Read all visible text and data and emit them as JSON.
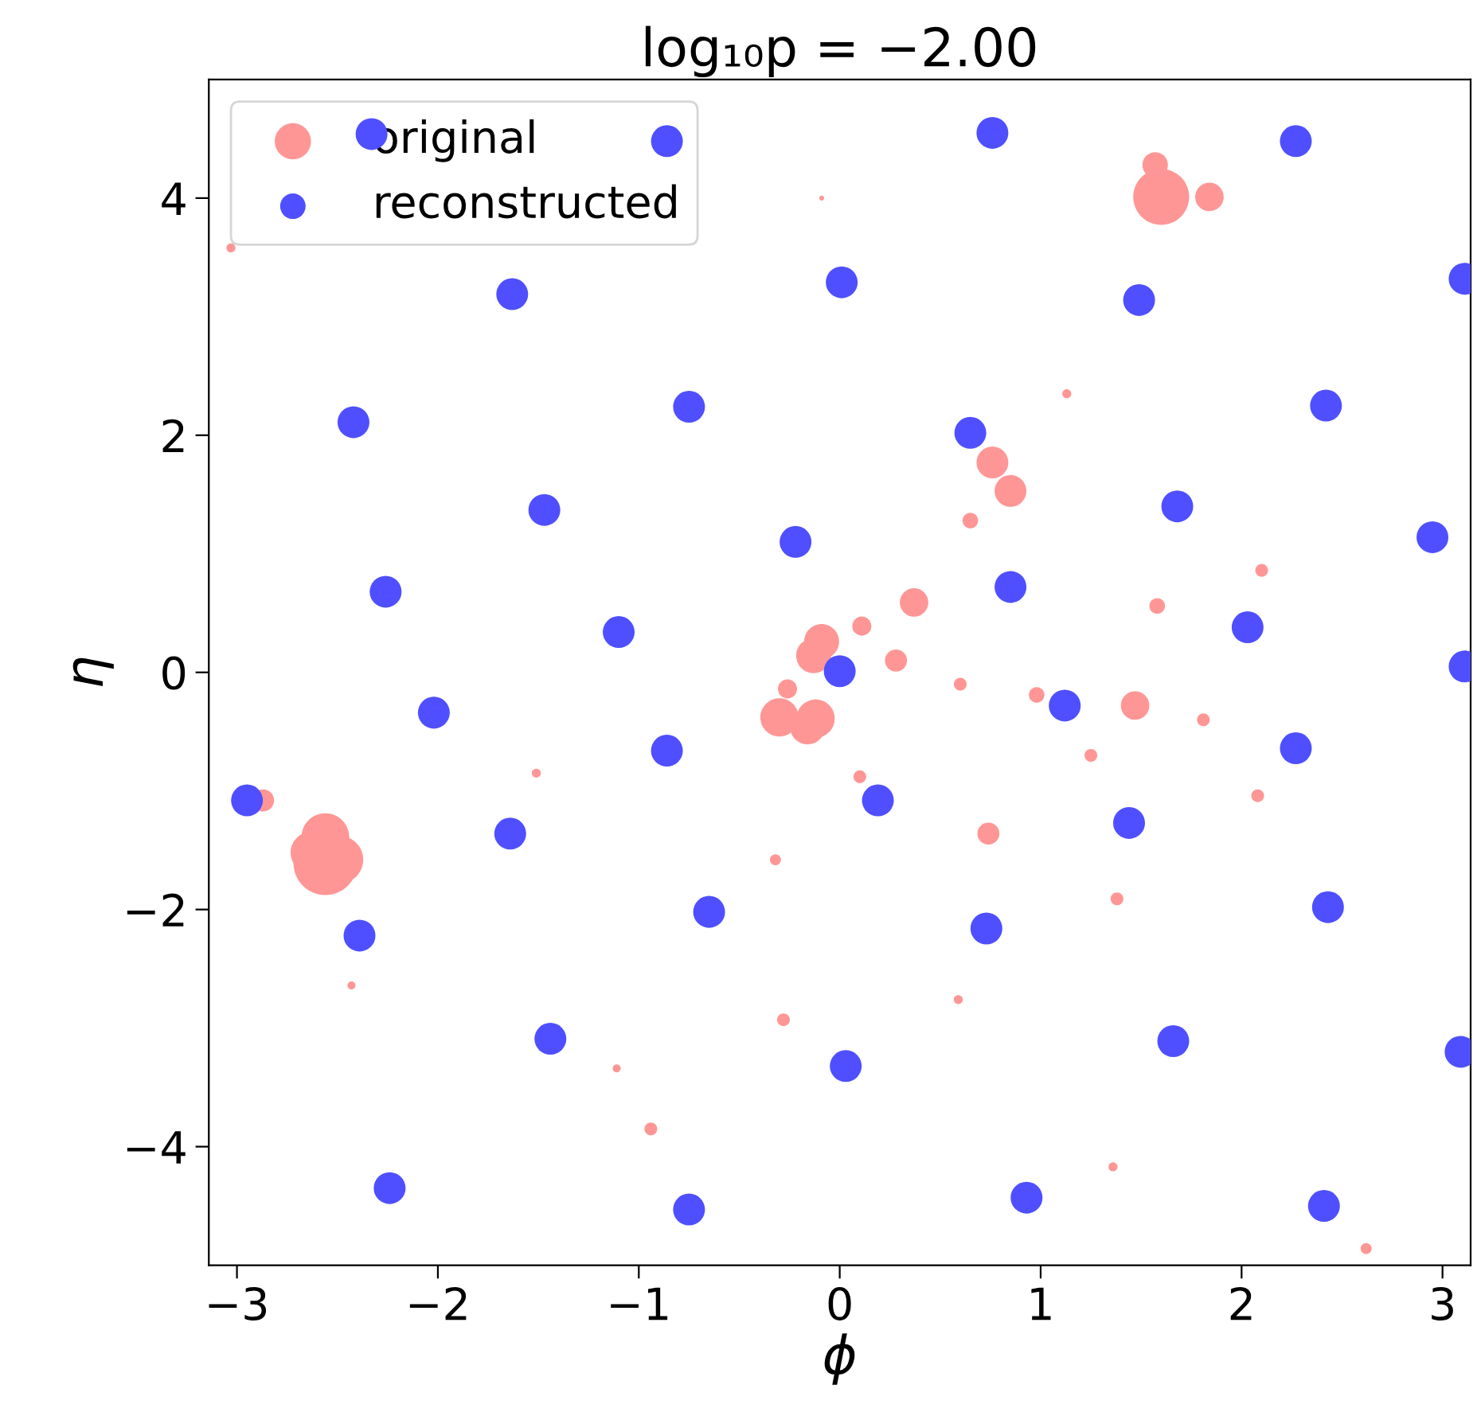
{
  "chart_data": {
    "type": "bubble",
    "title": "log₁₀p = −2.00",
    "xlabel": "ϕ",
    "ylabel": "η",
    "xlim": [
      -3.14,
      3.14
    ],
    "ylim": [
      -5,
      5
    ],
    "xticks": [
      {
        "value": -3,
        "label": "−3"
      },
      {
        "value": -2,
        "label": "−2"
      },
      {
        "value": -1,
        "label": "−1"
      },
      0,
      1,
      2,
      3
    ],
    "yticks": [
      {
        "value": -4,
        "label": "−4"
      },
      {
        "value": -2,
        "label": "−2"
      },
      0,
      2,
      4
    ],
    "grid": false,
    "legend": "top left",
    "marker": "circle",
    "series": [
      {
        "name": "original",
        "color": "#ff9696",
        "x": [
          -3.03,
          -0.09,
          1.57,
          1.6,
          1.84,
          1.13,
          0.76,
          0.85,
          0.65,
          2.1,
          1.58,
          0.37,
          0.11,
          -0.09,
          -0.13,
          0.28,
          -0.26,
          -0.3,
          -0.12,
          -0.16,
          0.6,
          0.98,
          1.47,
          1.81,
          1.25,
          2.08,
          0.1,
          -1.51,
          -2.87,
          -2.56,
          -2.63,
          -2.49,
          -2.56,
          -2.43,
          0.74,
          1.38,
          -0.32,
          -0.28,
          -1.11,
          -0.94,
          0.59,
          1.36,
          2.62
        ],
        "values": [
          3.58,
          4.0,
          4.28,
          4.01,
          4.01,
          2.35,
          1.77,
          1.53,
          1.28,
          0.86,
          0.56,
          0.59,
          0.39,
          0.26,
          0.14,
          0.1,
          -0.14,
          -0.38,
          -0.39,
          -0.46,
          -0.1,
          -0.19,
          -0.28,
          -0.4,
          -0.7,
          -1.04,
          -0.88,
          -0.85,
          -1.08,
          -1.39,
          -1.52,
          -1.58,
          -1.61,
          -2.64,
          -1.36,
          -1.91,
          -1.58,
          -2.93,
          -3.34,
          -3.85,
          -2.76,
          -4.17,
          -4.86
        ],
        "sizes": [
          0.02,
          0.006,
          0.16,
          0.77,
          0.2,
          0.02,
          0.25,
          0.25,
          0.06,
          0.04,
          0.06,
          0.2,
          0.09,
          0.3,
          0.3,
          0.12,
          0.09,
          0.36,
          0.36,
          0.3,
          0.04,
          0.06,
          0.2,
          0.04,
          0.04,
          0.04,
          0.04,
          0.02,
          0.12,
          0.56,
          0.42,
          0.56,
          1,
          0.016,
          0.12,
          0.04,
          0.03,
          0.04,
          0.016,
          0.04,
          0.02,
          0.02,
          0.03
        ]
      },
      {
        "name": "reconstructed",
        "color": "#4f4fff",
        "x": [
          -2.33,
          -0.86,
          0.76,
          2.27,
          -1.63,
          0.01,
          1.49,
          3.11,
          -2.42,
          -0.75,
          0.65,
          2.42,
          -1.47,
          -0.22,
          1.68,
          2.95,
          -2.26,
          -1.1,
          0.85,
          2.03,
          3.11,
          -2.02,
          0.0,
          1.12,
          -0.86,
          2.27,
          -2.95,
          0.19,
          -1.64,
          1.44,
          -2.39,
          -0.65,
          0.73,
          2.43,
          -1.44,
          0.03,
          1.66,
          3.09,
          -2.24,
          -0.75,
          0.93,
          2.41
        ],
        "values": [
          4.54,
          4.48,
          4.55,
          4.48,
          3.19,
          3.29,
          3.14,
          3.32,
          2.11,
          2.24,
          2.02,
          2.25,
          1.37,
          1.1,
          1.4,
          1.14,
          0.68,
          0.34,
          0.72,
          0.38,
          0.05,
          -0.34,
          0.01,
          -0.28,
          -0.66,
          -0.64,
          -1.08,
          -1.08,
          -1.36,
          -1.27,
          -2.22,
          -2.02,
          -2.16,
          -1.98,
          -3.09,
          -3.32,
          -3.11,
          -3.2,
          -4.35,
          -4.53,
          -4.43,
          -4.5
        ],
        "sizes": [
          0.25,
          0.25,
          0.25,
          0.25,
          0.25,
          0.25,
          0.25,
          0.25,
          0.25,
          0.25,
          0.25,
          0.25,
          0.25,
          0.25,
          0.25,
          0.25,
          0.25,
          0.25,
          0.25,
          0.25,
          0.25,
          0.25,
          0.25,
          0.25,
          0.25,
          0.25,
          0.25,
          0.25,
          0.25,
          0.25,
          0.25,
          0.25,
          0.25,
          0.25,
          0.25,
          0.25,
          0.25,
          0.25,
          0.25,
          0.25,
          0.25,
          0.25
        ]
      }
    ]
  }
}
